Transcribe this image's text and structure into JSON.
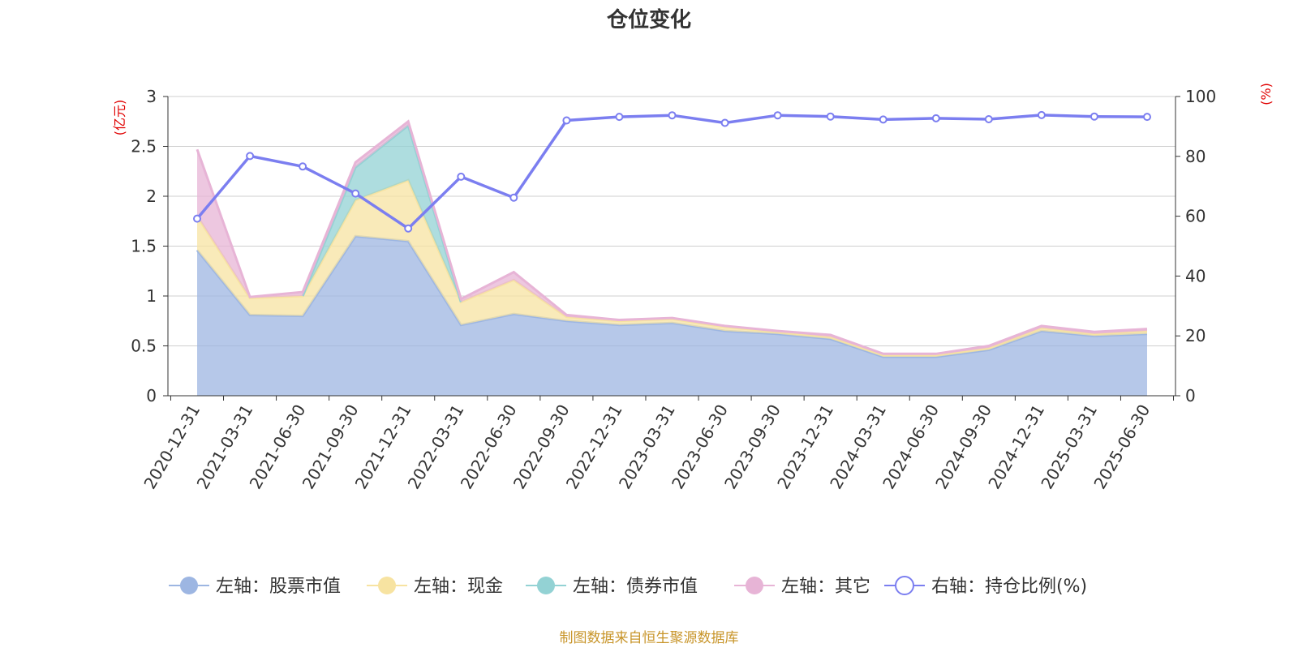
{
  "chart_data": {
    "type": "area",
    "title": "仓位变化",
    "left_axis_unit": "(亿元)",
    "right_axis_unit": "(%)",
    "ylim_left": [
      0,
      3
    ],
    "ylim_right": [
      0,
      100
    ],
    "left_ticks": [
      "0",
      "0.5",
      "1",
      "1.5",
      "2",
      "2.5",
      "3"
    ],
    "right_ticks": [
      "0",
      "20",
      "40",
      "60",
      "80",
      "100"
    ],
    "categories": [
      "2020-12-31",
      "2021-03-31",
      "2021-06-30",
      "2021-09-30",
      "2021-12-31",
      "2022-03-31",
      "2022-06-30",
      "2022-09-30",
      "2022-12-31",
      "2023-03-31",
      "2023-06-30",
      "2023-09-30",
      "2023-12-31",
      "2024-03-31",
      "2024-06-30",
      "2024-09-30",
      "2024-12-31",
      "2025-03-31",
      "2025-06-30"
    ],
    "series": [
      {
        "name": "左轴：股票市值",
        "axis": "left",
        "stack": true,
        "color": "#9db6e2",
        "values": [
          1.46,
          0.81,
          0.8,
          1.6,
          1.55,
          0.71,
          0.82,
          0.75,
          0.71,
          0.73,
          0.65,
          0.62,
          0.57,
          0.39,
          0.39,
          0.46,
          0.65,
          0.6,
          0.62
        ]
      },
      {
        "name": "左轴：现金",
        "axis": "left",
        "stack": true,
        "color": "#f7e3a1",
        "values": [
          0.34,
          0.17,
          0.2,
          0.36,
          0.61,
          0.23,
          0.34,
          0.04,
          0.04,
          0.04,
          0.04,
          0.02,
          0.02,
          0.02,
          0.02,
          0.02,
          0.03,
          0.02,
          0.03
        ]
      },
      {
        "name": "左轴：债券市值",
        "axis": "left",
        "stack": true,
        "color": "#93d2d4",
        "values": [
          0,
          0,
          0,
          0.33,
          0.55,
          0,
          0,
          0,
          0,
          0,
          0,
          0,
          0,
          0,
          0,
          0,
          0,
          0,
          0
        ]
      },
      {
        "name": "左轴：其它",
        "axis": "left",
        "stack": true,
        "color": "#e7b4d6",
        "values": [
          0.67,
          0.01,
          0.04,
          0.05,
          0.04,
          0.03,
          0.08,
          0.02,
          0.01,
          0.01,
          0.01,
          0.01,
          0.02,
          0.01,
          0.01,
          0.02,
          0.02,
          0.02,
          0.02
        ]
      },
      {
        "name": "右轴：持仓比例(%)",
        "axis": "right",
        "type": "line",
        "color": "#7b7ef0",
        "values": [
          59.2,
          80.1,
          76.6,
          67.6,
          55.9,
          73.2,
          66.2,
          92.0,
          93.2,
          93.7,
          91.2,
          93.7,
          93.3,
          92.3,
          92.7,
          92.4,
          93.8,
          93.3,
          93.2
        ]
      }
    ],
    "legend_position": "bottom",
    "grid": true
  },
  "source_note": "制图数据来自恒生聚源数据库"
}
